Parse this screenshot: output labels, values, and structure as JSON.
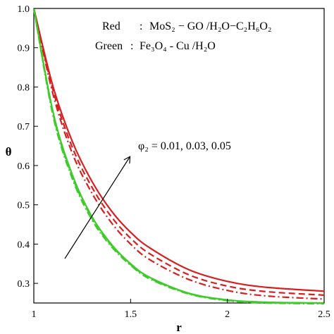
{
  "chart_data": {
    "type": "line",
    "xlabel": "r",
    "ylabel": "θ",
    "xlim": [
      1,
      2.5
    ],
    "ylim": [
      0.25,
      1.0
    ],
    "x_ticks": [
      "1",
      "1.5",
      "2",
      "2.5"
    ],
    "y_ticks": [
      "0.3",
      "0.4",
      "0.5",
      "0.6",
      "0.7",
      "0.8",
      "0.9",
      "1.0"
    ],
    "grid": false,
    "legend": {
      "placement": "top-right",
      "lines": [
        {
          "label": "Red",
          "sep": ":",
          "text": "MoS₂ − GO /H₂O−C₂H₆O₂"
        },
        {
          "label": "Green",
          "sep": ":",
          "text": "Fe₃O₄ - Cu /H₂O"
        }
      ]
    },
    "annotation": "φ₂ = 0.01, 0.03, 0.05",
    "colors": {
      "red": "#d62020",
      "green": "#3ecb2a"
    },
    "series": [
      {
        "group": "Red",
        "style": "solid",
        "x": [
          1.0,
          1.1,
          1.2,
          1.3,
          1.4,
          1.5,
          1.6,
          1.8,
          2.0,
          2.2,
          2.5
        ],
        "values": [
          1.0,
          0.8,
          0.66,
          0.56,
          0.485,
          0.43,
          0.39,
          0.335,
          0.305,
          0.29,
          0.28
        ]
      },
      {
        "group": "Red",
        "style": "dash",
        "x": [
          1.0,
          1.1,
          1.2,
          1.3,
          1.4,
          1.5,
          1.6,
          1.8,
          2.0,
          2.2,
          2.5
        ],
        "values": [
          1.0,
          0.79,
          0.645,
          0.545,
          0.47,
          0.415,
          0.375,
          0.322,
          0.293,
          0.279,
          0.27
        ]
      },
      {
        "group": "Red",
        "style": "dashdot",
        "x": [
          1.0,
          1.1,
          1.2,
          1.3,
          1.4,
          1.5,
          1.6,
          1.8,
          2.0,
          2.2,
          2.5
        ],
        "values": [
          1.0,
          0.78,
          0.63,
          0.53,
          0.455,
          0.4,
          0.36,
          0.31,
          0.282,
          0.268,
          0.26
        ]
      },
      {
        "group": "Green",
        "style": "solid",
        "x": [
          1.0,
          1.1,
          1.2,
          1.3,
          1.4,
          1.5,
          1.6,
          1.8,
          2.0,
          2.2,
          2.5
        ],
        "values": [
          1.0,
          0.735,
          0.575,
          0.47,
          0.4,
          0.35,
          0.315,
          0.275,
          0.258,
          0.252,
          0.25
        ]
      },
      {
        "group": "Green",
        "style": "dash",
        "x": [
          1.0,
          1.1,
          1.2,
          1.3,
          1.4,
          1.5,
          1.6,
          1.8,
          2.0,
          2.2,
          2.5
        ],
        "values": [
          1.0,
          0.73,
          0.57,
          0.466,
          0.397,
          0.348,
          0.313,
          0.274,
          0.257,
          0.251,
          0.249
        ]
      },
      {
        "group": "Green",
        "style": "dashdot",
        "x": [
          1.0,
          1.1,
          1.2,
          1.3,
          1.4,
          1.5,
          1.6,
          1.8,
          2.0,
          2.2,
          2.5
        ],
        "values": [
          1.0,
          0.725,
          0.565,
          0.462,
          0.394,
          0.346,
          0.311,
          0.273,
          0.256,
          0.25,
          0.248
        ]
      }
    ]
  }
}
